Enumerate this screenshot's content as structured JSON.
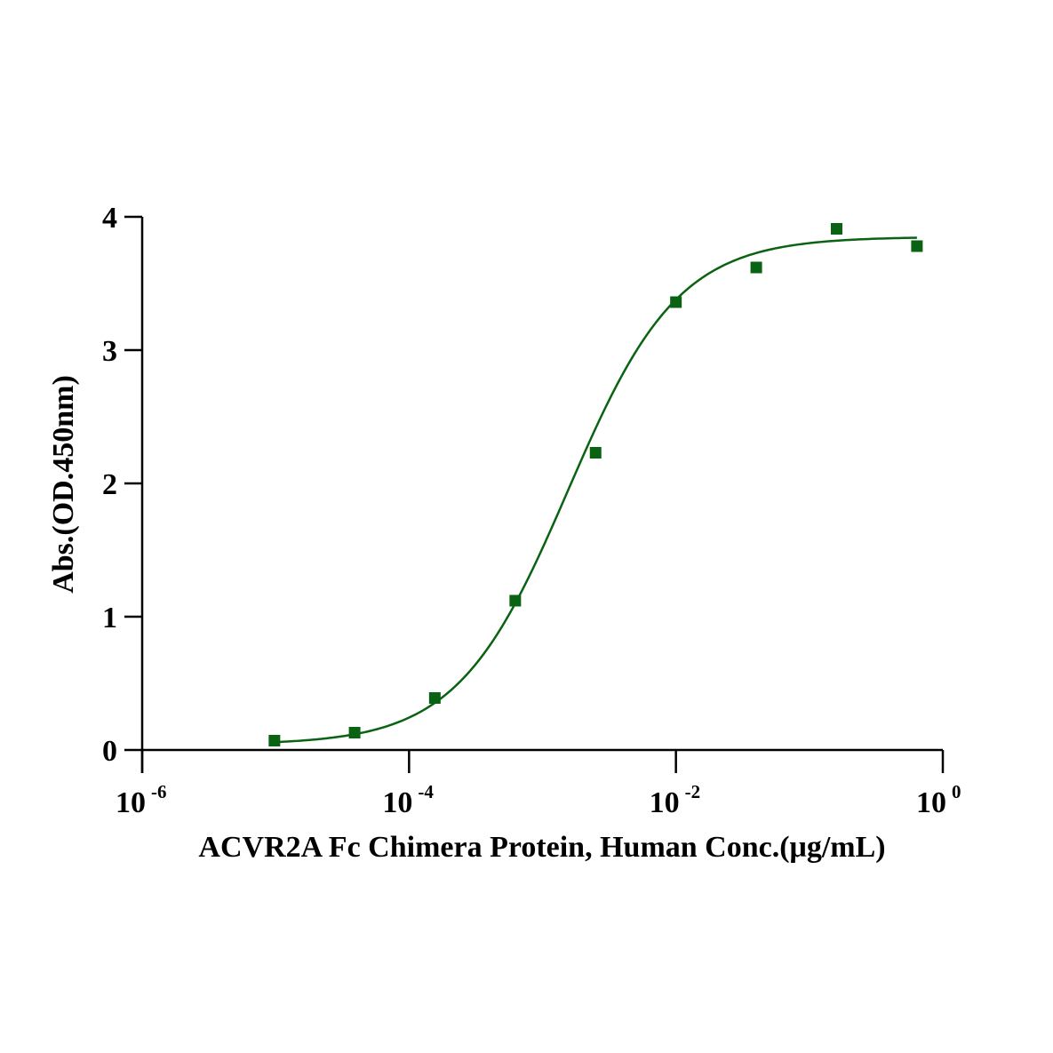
{
  "chart_data": {
    "type": "scatter",
    "title": "",
    "xlabel": "ACVR2A Fc Chimera Protein, Human Conc.(μg/mL)",
    "ylabel": "Abs.(OD.450nm)",
    "xscale": "log10",
    "xlim": [
      1e-06,
      1
    ],
    "ylim": [
      0,
      4
    ],
    "x_ticks": [
      {
        "base": "10",
        "exp": "-6",
        "value": 1e-06
      },
      {
        "base": "10",
        "exp": "-4",
        "value": 0.0001
      },
      {
        "base": "10",
        "exp": "-2",
        "value": 0.01
      },
      {
        "base": "10",
        "exp": "0",
        "value": 1
      }
    ],
    "y_ticks": [
      "0",
      "1",
      "2",
      "3",
      "4"
    ],
    "series": [
      {
        "name": "ACVR2A Fc Chimera Protein, Human",
        "color": "#0a6312",
        "marker": "square",
        "x": [
          9.8e-06,
          3.91e-05,
          0.000156,
          0.000625,
          0.0025,
          0.01,
          0.04,
          0.16,
          0.64
        ],
        "y": [
          0.07,
          0.13,
          0.39,
          1.12,
          2.23,
          3.36,
          3.62,
          3.91,
          3.78
        ]
      }
    ],
    "fit": {
      "model": "4PL",
      "bottom": 0.04,
      "top": 3.85,
      "ec50": 0.00155,
      "hill": 1.05,
      "color": "#0a6312"
    }
  }
}
